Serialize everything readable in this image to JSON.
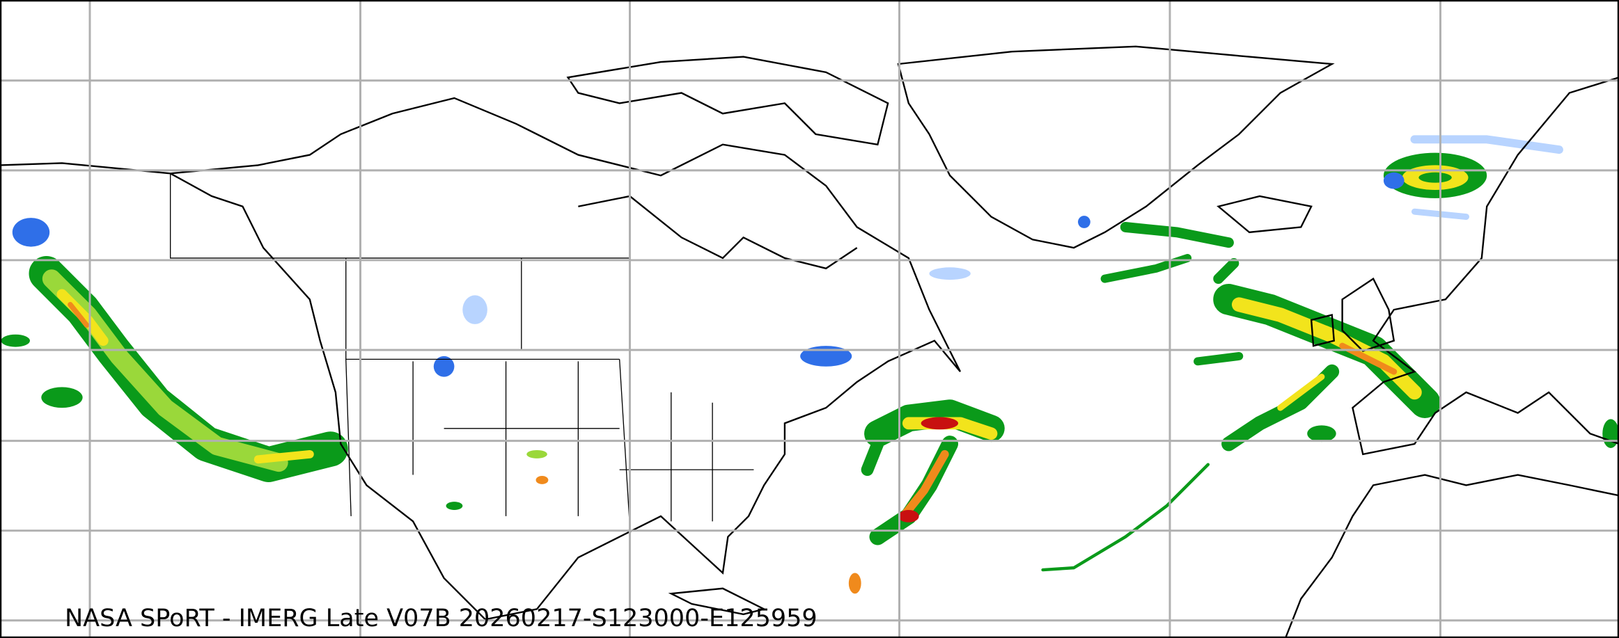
{
  "caption": "NASA SPoRT - IMERG Late V07B 20260217-S123000-E125959",
  "map": {
    "product": "IMERG Late V07B",
    "gridlines": true,
    "colors": {
      "light_snow": "#b8d4ff",
      "snow": "#2f6fe8",
      "light_rain": "#0a9a1a",
      "moderate_rain": "#9ad83a",
      "heavy_rain": "#f2e41c",
      "very_heavy_rain": "#f08a1c",
      "extreme_rain": "#c81010",
      "coastline": "#000000",
      "grid": "#b0b0b0"
    }
  }
}
